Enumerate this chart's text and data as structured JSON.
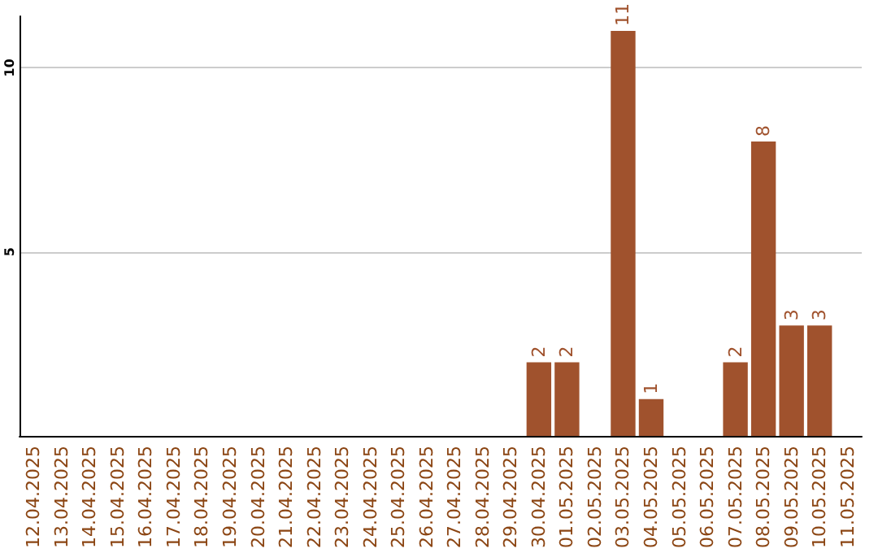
{
  "chart_data": {
    "type": "bar",
    "categories": [
      "12.04.2025",
      "13.04.2025",
      "14.04.2025",
      "15.04.2025",
      "16.04.2025",
      "17.04.2025",
      "18.04.2025",
      "19.04.2025",
      "20.04.2025",
      "21.04.2025",
      "22.04.2025",
      "23.04.2025",
      "24.04.2025",
      "25.04.2025",
      "26.04.2025",
      "27.04.2025",
      "28.04.2025",
      "29.04.2025",
      "30.04.2025",
      "01.05.2025",
      "02.05.2025",
      "03.05.2025",
      "04.05.2025",
      "05.05.2025",
      "06.05.2025",
      "07.05.2025",
      "08.05.2025",
      "09.05.2025",
      "10.05.2025",
      "11.05.2025"
    ],
    "values": [
      0,
      0,
      0,
      0,
      0,
      0,
      0,
      0,
      0,
      0,
      0,
      0,
      0,
      0,
      0,
      0,
      0,
      0,
      2,
      2,
      0,
      11,
      1,
      0,
      0,
      2,
      8,
      3,
      3,
      0
    ],
    "value_labels": [
      null,
      null,
      null,
      null,
      null,
      null,
      null,
      null,
      null,
      null,
      null,
      null,
      null,
      null,
      null,
      null,
      null,
      null,
      "2",
      "2",
      null,
      "11",
      "1",
      null,
      null,
      "2",
      "8",
      "3",
      "3",
      null
    ],
    "color": "#a0522d",
    "ylim": [
      0,
      11.4
    ],
    "yticks": [
      5,
      10
    ],
    "grid": "y"
  }
}
